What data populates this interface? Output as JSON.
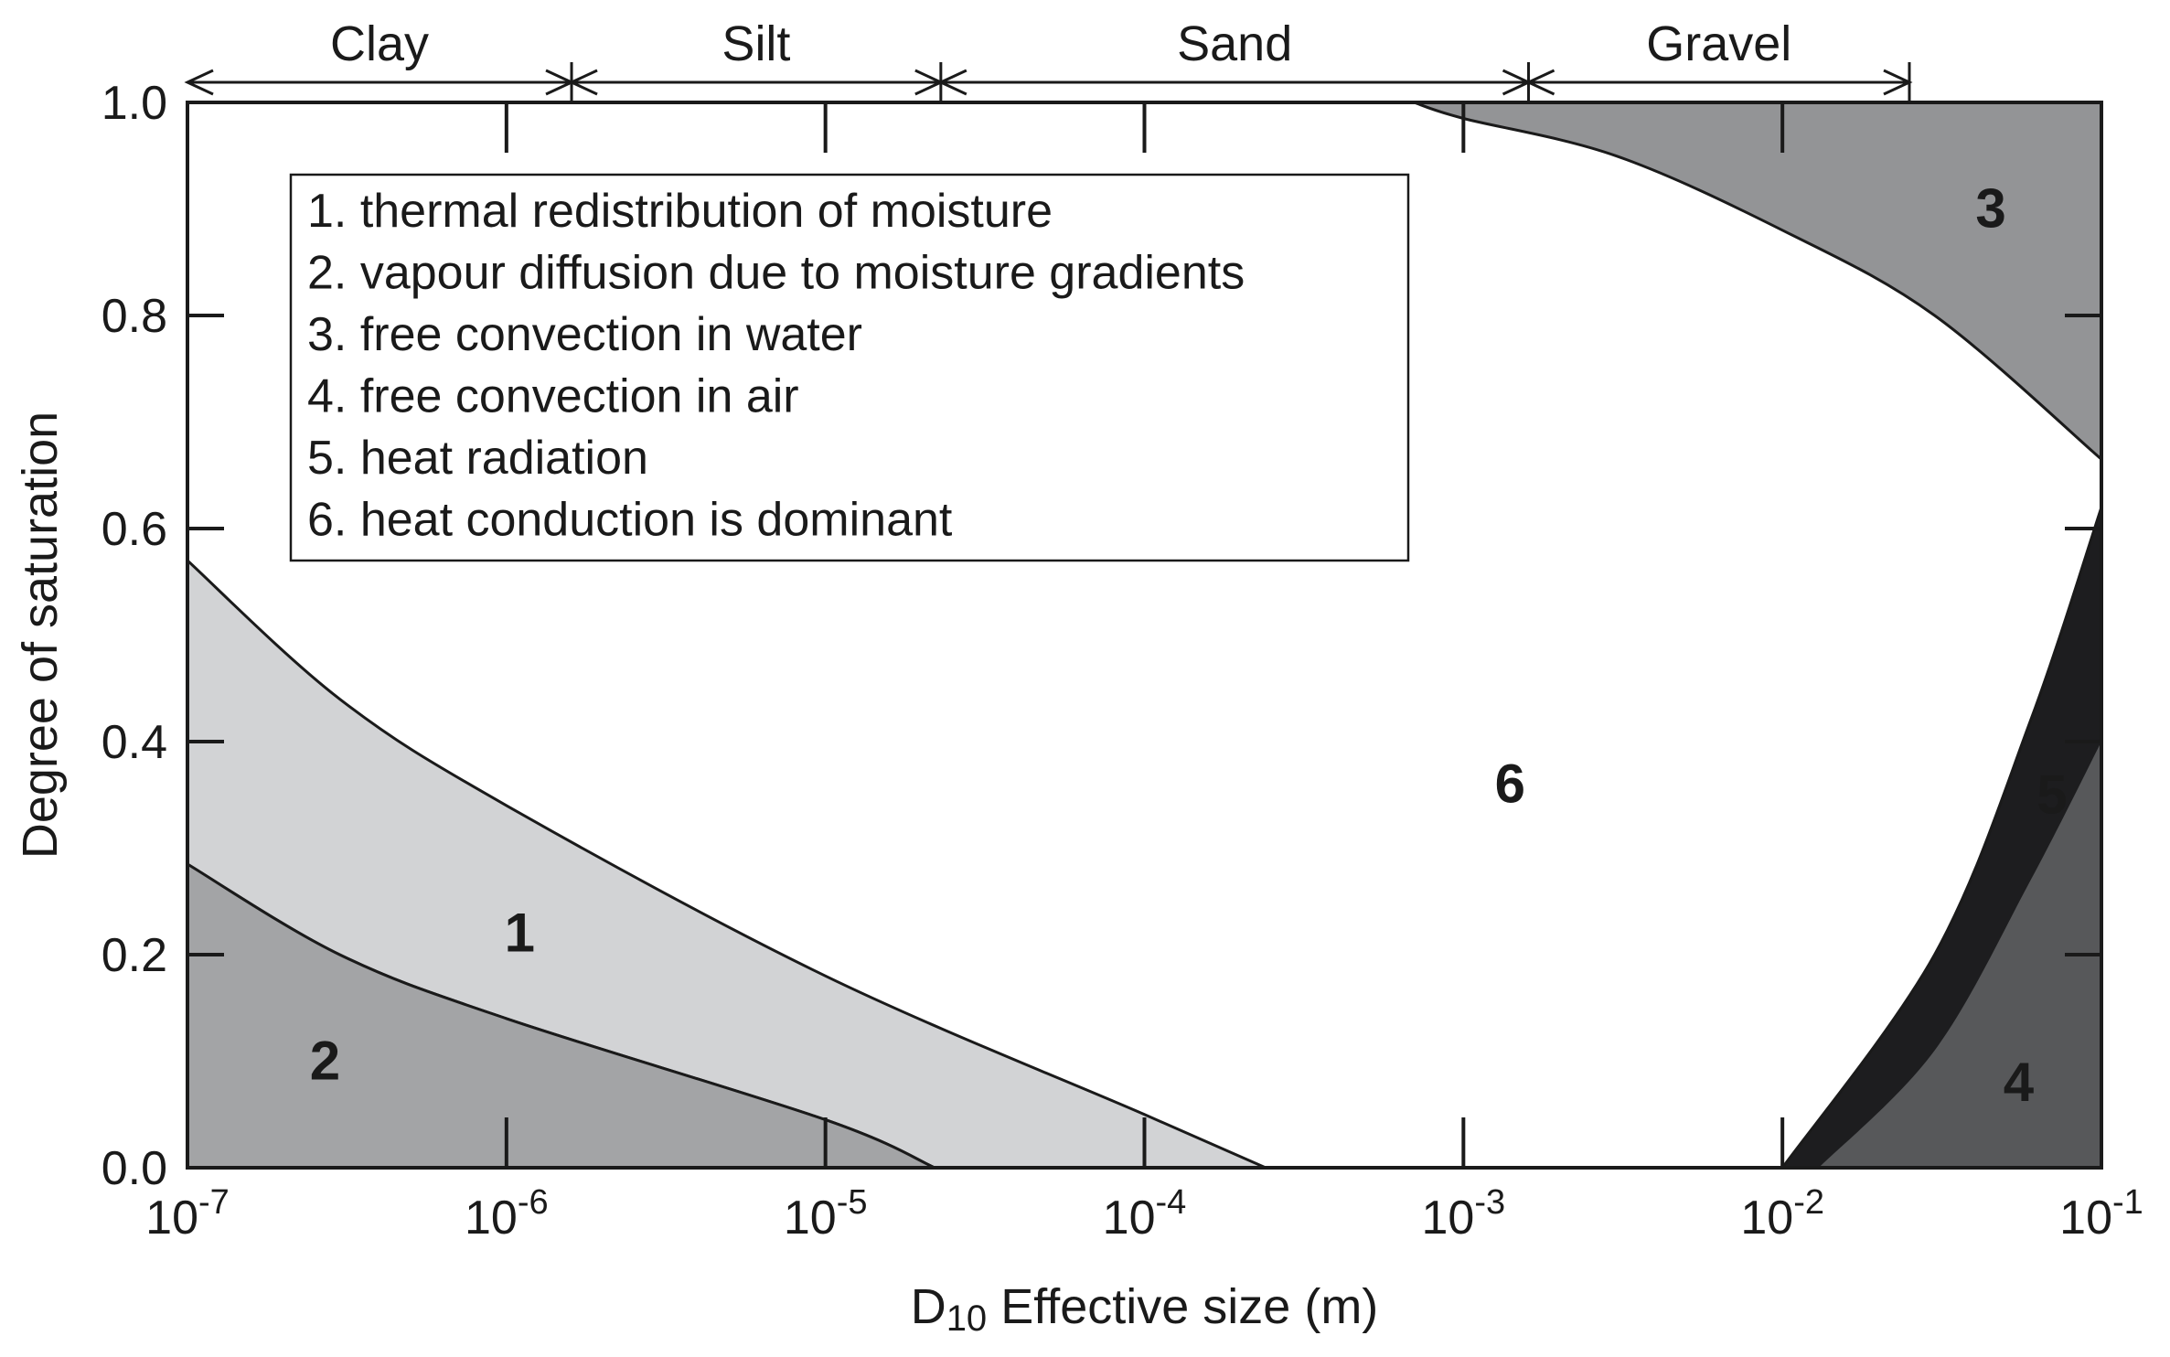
{
  "chart_data": {
    "type": "area",
    "title": "",
    "xlabel": "D10 Effective size (m)",
    "ylabel": "Degree of saturation",
    "x_scale": "log",
    "xlim": [
      1e-07,
      0.1
    ],
    "ylim": [
      0,
      1
    ],
    "x_ticks": [
      {
        "value": 1e-07,
        "base": "10",
        "exp": "-7"
      },
      {
        "value": 1e-06,
        "base": "10",
        "exp": "-6"
      },
      {
        "value": 1e-05,
        "base": "10",
        "exp": "-5"
      },
      {
        "value": 0.0001,
        "base": "10",
        "exp": "-4"
      },
      {
        "value": 0.001,
        "base": "10",
        "exp": "-3"
      },
      {
        "value": 0.01,
        "base": "10",
        "exp": "-2"
      },
      {
        "value": 0.1,
        "base": "10",
        "exp": "-1"
      }
    ],
    "y_ticks": [
      {
        "value": 0.0,
        "label": "0.0"
      },
      {
        "value": 0.2,
        "label": "0.2"
      },
      {
        "value": 0.4,
        "label": "0.4"
      },
      {
        "value": 0.6,
        "label": "0.6"
      },
      {
        "value": 0.8,
        "label": "0.8"
      },
      {
        "value": 1.0,
        "label": "1.0"
      }
    ],
    "grid": false,
    "grain_sizes": [
      {
        "name": "Clay",
        "from": 1e-07,
        "to": 1.6e-06
      },
      {
        "name": "Silt",
        "from": 1.6e-06,
        "to": 2.3e-05
      },
      {
        "name": "Sand",
        "from": 2.3e-05,
        "to": 0.0016
      },
      {
        "name": "Gravel",
        "from": 0.0016,
        "to": 0.025
      }
    ],
    "legend": {
      "placement": "top-left",
      "entries": [
        "1. thermal redistribution of moisture",
        "2. vapour diffusion due to moisture gradients",
        "3. free convection in water",
        "4. free convection in air",
        "5. heat radiation",
        "6. heat conduction is dominant"
      ]
    },
    "regions": [
      {
        "id": "1",
        "label": "1",
        "color": "#d2d3d5",
        "label_at": [
          1.1e-06,
          0.22
        ],
        "boundary_upper": [
          [
            1e-07,
            0.57
          ],
          [
            3e-07,
            0.44
          ],
          [
            1e-06,
            0.34
          ],
          [
            1e-05,
            0.18
          ],
          [
            0.0001,
            0.05
          ],
          [
            0.00024,
            0.0
          ]
        ],
        "boundary_lower": [
          [
            1e-07,
            0.285
          ],
          [
            3e-07,
            0.2
          ],
          [
            1e-06,
            0.14
          ],
          [
            1e-05,
            0.045
          ],
          [
            2.2e-05,
            0.0
          ]
        ]
      },
      {
        "id": "2",
        "label": "2",
        "color": "#a3a4a6",
        "label_at": [
          2.7e-07,
          0.1
        ],
        "boundary": [
          [
            1e-07,
            0.285
          ],
          [
            3e-07,
            0.2
          ],
          [
            1e-06,
            0.14
          ],
          [
            1e-05,
            0.045
          ],
          [
            2.2e-05,
            0.0
          ]
        ]
      },
      {
        "id": "3",
        "label": "3",
        "color": "#939496",
        "label_at": [
          0.045,
          0.9
        ],
        "boundary": [
          [
            0.0007,
            1.0
          ],
          [
            0.001,
            0.985
          ],
          [
            0.003,
            0.95
          ],
          [
            0.01,
            0.88
          ],
          [
            0.03,
            0.8
          ],
          [
            0.1,
            0.665
          ]
        ]
      },
      {
        "id": "4",
        "label": "4",
        "color": "#57585a",
        "label_at": [
          0.055,
          0.08
        ],
        "boundary": [
          [
            0.013,
            0.0
          ],
          [
            0.03,
            0.11
          ],
          [
            0.06,
            0.27
          ],
          [
            0.1,
            0.4
          ]
        ]
      },
      {
        "id": "5",
        "label": "5",
        "color": "#1d1d1f",
        "label_at": [
          0.07,
          0.35
        ],
        "boundary": [
          [
            0.01,
            0.0
          ],
          [
            0.03,
            0.2
          ],
          [
            0.06,
            0.42
          ],
          [
            0.1,
            0.62
          ]
        ]
      },
      {
        "id": "6",
        "label": "6",
        "color": "#ffffff",
        "label_at": [
          0.0014,
          0.36
        ]
      }
    ]
  }
}
